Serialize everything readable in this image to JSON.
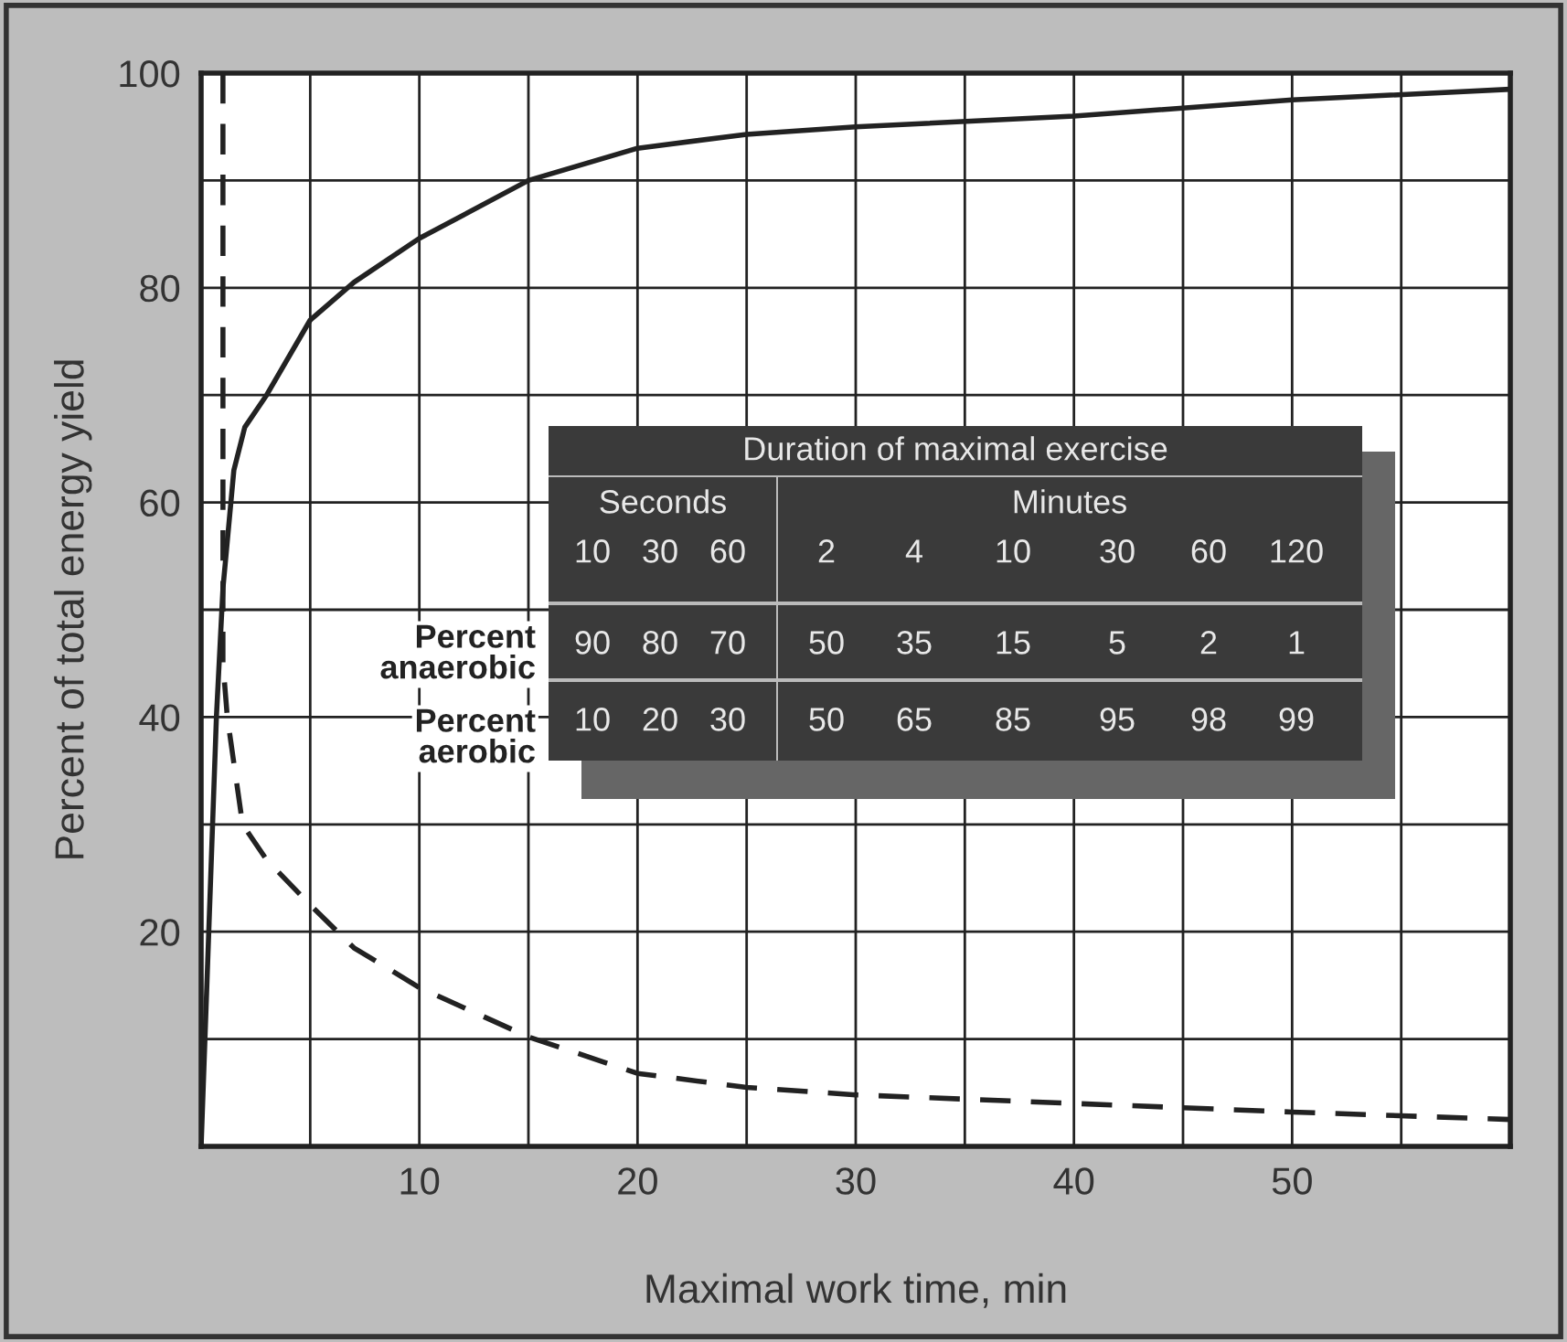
{
  "chart_data": {
    "type": "line",
    "xlabel": "Maximal work time, min",
    "ylabel": "Percent of total energy yield",
    "xlim": [
      0,
      60
    ],
    "ylim": [
      0,
      100
    ],
    "xticks": [
      {
        "value": 0,
        "label": null
      },
      {
        "value": 5,
        "label": null
      },
      10,
      {
        "value": 15,
        "label": null
      },
      20,
      {
        "value": 25,
        "label": null
      },
      30,
      {
        "value": 35,
        "label": null
      },
      40,
      {
        "value": 45,
        "label": null
      },
      50,
      {
        "value": 55,
        "label": null
      }
    ],
    "yticks": [
      {
        "value": 0,
        "label": null
      },
      {
        "value": 10,
        "label": null
      },
      20,
      {
        "value": 30,
        "label": null
      },
      40,
      {
        "value": 50,
        "label": null
      },
      60,
      {
        "value": 70,
        "label": null
      },
      80,
      {
        "value": 90,
        "label": null
      },
      100
    ],
    "grid": true,
    "legend": false,
    "series": [
      {
        "color": "#222222",
        "line_style": "solid",
        "x": [
          0,
          0.7,
          1,
          1.5,
          2,
          3,
          5,
          7,
          10,
          15,
          20,
          25,
          30,
          40,
          50,
          60
        ],
        "values": [
          0,
          40,
          52,
          63,
          67,
          70,
          77,
          80.5,
          84.6,
          90,
          93,
          94.3,
          95,
          96,
          97.5,
          98.5
        ]
      },
      {
        "color": "#222222",
        "line_style": "dashed",
        "x": [
          1,
          1,
          1.2,
          1.9,
          3,
          5,
          7,
          10,
          15,
          20,
          25,
          30,
          40,
          50,
          60
        ],
        "values": [
          100,
          45,
          40,
          30,
          26.7,
          22.5,
          18.5,
          14.8,
          10.2,
          6.8,
          5.5,
          4.8,
          4,
          3.2,
          2.5
        ]
      }
    ],
    "annotations": [
      "Duration of maximal exercise",
      "Seconds",
      "Minutes",
      "10",
      "30",
      "60",
      "2",
      "4",
      "10",
      "30",
      "60",
      "120",
      "90",
      "80",
      "70",
      "50",
      "35",
      "15",
      "5",
      "2",
      "1",
      "10",
      "20",
      "30",
      "50",
      "65",
      "85",
      "95",
      "98",
      "99",
      "Percent\nanaerobic",
      "Percent\naerobic"
    ]
  }
}
